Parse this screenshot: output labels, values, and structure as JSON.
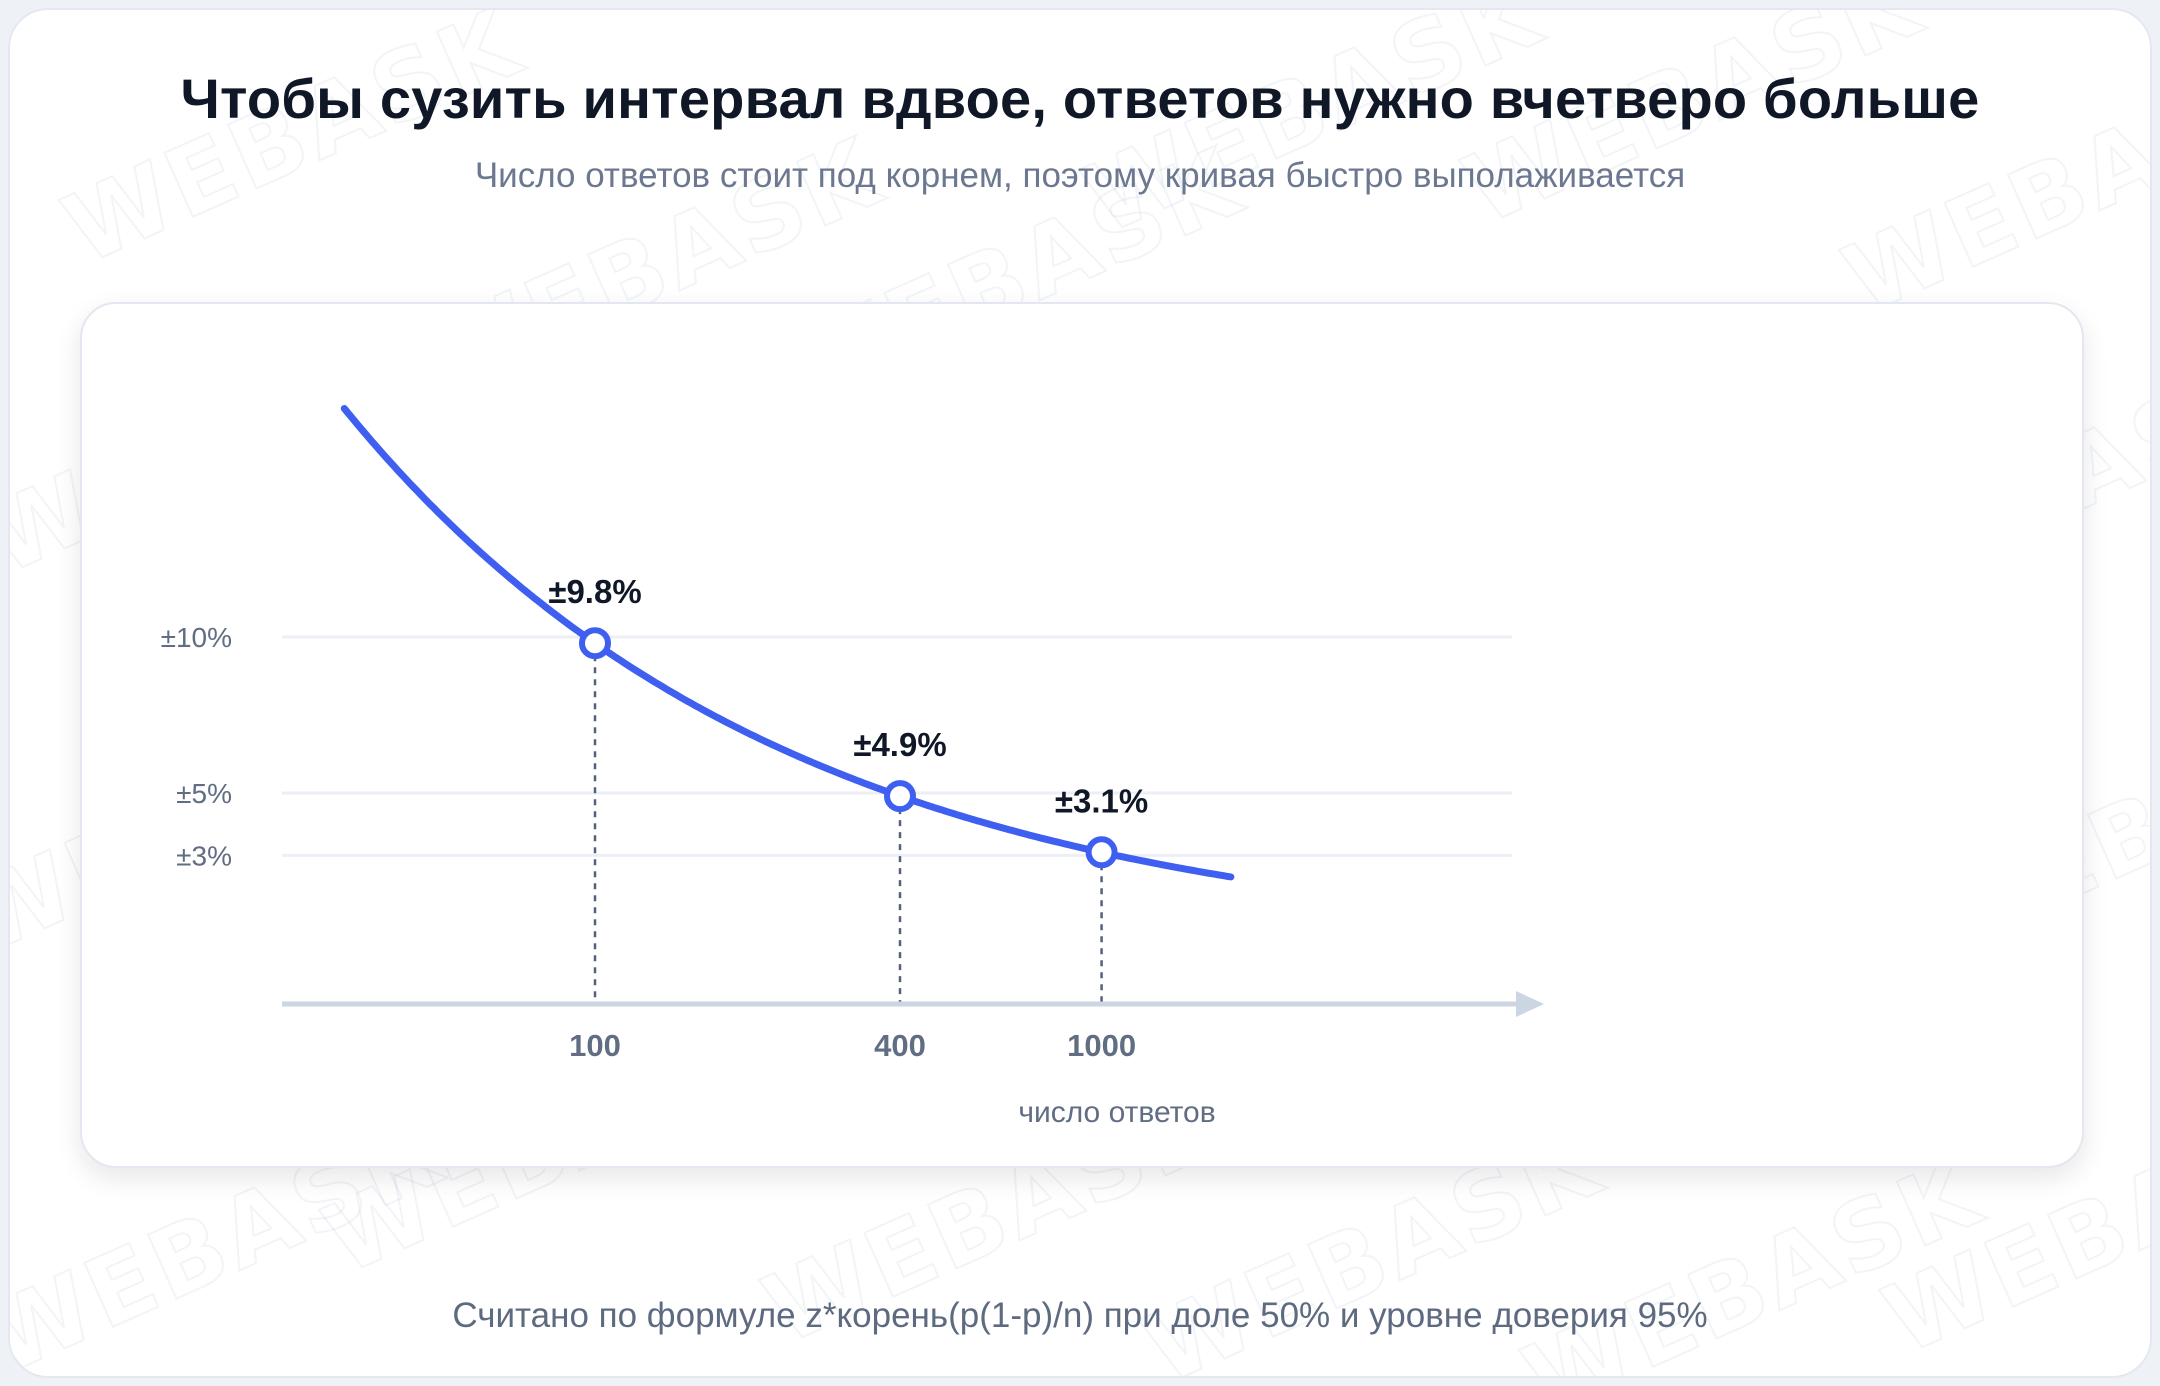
{
  "title": "Чтобы сузить интервал вдвое, ответов нужно вчетверо больше",
  "subtitle": "Число ответов стоит под корнем, поэтому кривая быстро выполаживается",
  "footnote": "Считано по формуле z*корень(p(1-p)/n) при доле 50% и уровне доверия 95%",
  "watermark_text": "WEBASK",
  "colors": {
    "curve": "#3f5ff0",
    "axis": "#ccd5e2",
    "gridline": "#eceff6",
    "dashed": "#55607a",
    "tick_text": "#606d82",
    "label_text": "#101828",
    "marker_fill": "#ffffff"
  },
  "chart_data": {
    "type": "line",
    "title": "",
    "xlabel": "число ответов",
    "ylabel": "",
    "formula": "y = 98 / sqrt(n)",
    "x_range": [
      32,
      1800
    ],
    "y_ticks": [
      {
        "value": 10,
        "label": "±10%"
      },
      {
        "value": 5,
        "label": "±5%"
      },
      {
        "value": 3,
        "label": "±3%"
      }
    ],
    "x_ticks": [
      {
        "value": 100,
        "label": "100"
      },
      {
        "value": 400,
        "label": "400"
      },
      {
        "value": 1000,
        "label": "1000"
      }
    ],
    "series": [
      {
        "points": [
          {
            "x": 100,
            "y": 9.8,
            "label": "±9.8%"
          },
          {
            "x": 400,
            "y": 4.9,
            "label": "±4.9%"
          },
          {
            "x": 1000,
            "y": 3.1,
            "label": "±3.1%"
          }
        ]
      }
    ],
    "grid": true,
    "legend": "none"
  }
}
